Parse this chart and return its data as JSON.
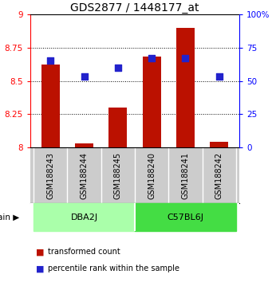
{
  "title": "GDS2877 / 1448177_at",
  "samples": [
    "GSM188243",
    "GSM188244",
    "GSM188245",
    "GSM188240",
    "GSM188241",
    "GSM188242"
  ],
  "groups": [
    {
      "name": "DBA2J",
      "color": "#aaffaa",
      "samples": [
        0,
        1,
        2
      ]
    },
    {
      "name": "C57BL6J",
      "color": "#44dd44",
      "samples": [
        3,
        4,
        5
      ]
    }
  ],
  "transformed_counts": [
    8.62,
    8.03,
    8.3,
    8.68,
    8.9,
    8.04
  ],
  "percentile_ranks": [
    65,
    53,
    60,
    67,
    67,
    53
  ],
  "ylim_left": [
    8.0,
    9.0
  ],
  "ylim_right": [
    0,
    100
  ],
  "yticks_left": [
    8.0,
    8.25,
    8.5,
    8.75,
    9.0
  ],
  "yticks_right": [
    0,
    25,
    50,
    75,
    100
  ],
  "ytick_labels_left": [
    "8",
    "8.25",
    "8.5",
    "8.75",
    "9"
  ],
  "ytick_labels_right": [
    "0",
    "25",
    "50",
    "75",
    "100%"
  ],
  "bar_color": "#BB1100",
  "dot_color": "#2222CC",
  "bar_width": 0.55,
  "dot_size": 30,
  "legend_bar_label": "transformed count",
  "legend_dot_label": "percentile rank within the sample",
  "strain_label": "strain",
  "grid_lines": [
    8.25,
    8.5,
    8.75
  ],
  "sample_bg_color": "#cccccc",
  "sample_divider_color": "#ffffff",
  "group_label_fontsize": 8,
  "sample_label_fontsize": 7,
  "title_fontsize": 10
}
